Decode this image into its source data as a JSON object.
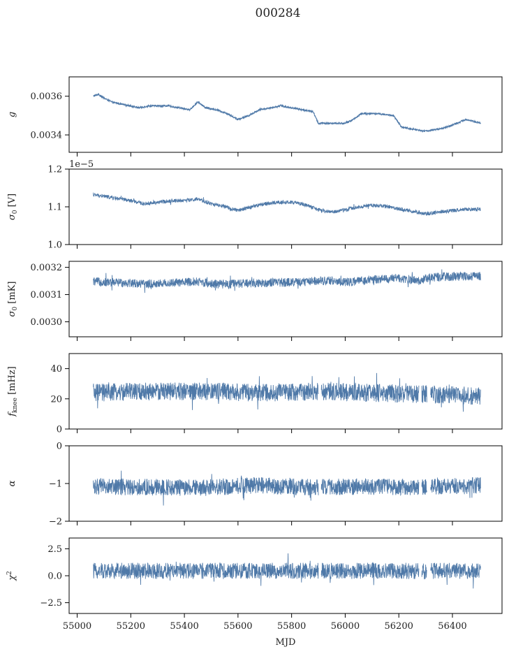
{
  "figure": {
    "title": "000284",
    "xlabel": "MJD"
  },
  "style": {
    "line_color": "#4f79a8",
    "frame_color": "#000000"
  },
  "chart_data": [
    {
      "type": "line",
      "ylabel": "g",
      "ylim": [
        0.00331,
        0.0037
      ],
      "yticks": [
        0.0034,
        0.0036
      ],
      "ytick_labels": [
        "0.0034",
        "0.0036"
      ],
      "xlim": [
        54970,
        56585
      ],
      "xticks": [
        55000,
        55200,
        55400,
        55600,
        55800,
        56000,
        56200,
        56400
      ],
      "show_xtick_labels": false,
      "offset_text": "",
      "noise": 4e-06,
      "series": [
        {
          "x": [
            55060,
            55080,
            55100,
            55130,
            55160,
            55200,
            55230,
            55270,
            55300,
            55340,
            55380,
            55420,
            55450,
            55480,
            55520,
            55560,
            55600,
            55640,
            55680,
            55720,
            55760,
            55800,
            55840,
            55880,
            55900,
            55950,
            56000,
            56030,
            56060,
            56120,
            56180,
            56210,
            56250,
            56300,
            56350,
            56400,
            56450,
            56505
          ],
          "y": [
            0.0036,
            0.00361,
            0.00359,
            0.00357,
            0.00356,
            0.00355,
            0.00354,
            0.00355,
            0.00355,
            0.00355,
            0.00354,
            0.00353,
            0.00357,
            0.00354,
            0.00353,
            0.00351,
            0.00348,
            0.0035,
            0.00353,
            0.00354,
            0.00355,
            0.00354,
            0.00353,
            0.00352,
            0.00346,
            0.00346,
            0.00346,
            0.00348,
            0.00351,
            0.00351,
            0.0035,
            0.00344,
            0.00343,
            0.00342,
            0.00343,
            0.00345,
            0.00348,
            0.00346
          ]
        }
      ]
    },
    {
      "type": "line",
      "ylabel": "σ0 [V]",
      "ylim": [
        1e-05,
        1.2e-05
      ],
      "yticks": [
        1e-05,
        1.1e-05,
        1.2e-05
      ],
      "ytick_labels": [
        "1.0",
        "1.1",
        "1.2"
      ],
      "xlim": [
        54970,
        56585
      ],
      "xticks": [
        55000,
        55200,
        55400,
        55600,
        55800,
        56000,
        56200,
        56400
      ],
      "show_xtick_labels": false,
      "offset_text": "1e−5",
      "noise": 5e-08,
      "series": [
        {
          "x": [
            55060,
            55100,
            55150,
            55200,
            55250,
            55300,
            55350,
            55400,
            55450,
            55500,
            55550,
            55600,
            55650,
            55700,
            55750,
            55800,
            55850,
            55900,
            55950,
            56000,
            56050,
            56100,
            56150,
            56200,
            56250,
            56300,
            56350,
            56400,
            56450,
            56505
          ],
          "y": [
            1.132e-05,
            1.128e-05,
            1.122e-05,
            1.116e-05,
            1.108e-05,
            1.112e-05,
            1.116e-05,
            1.117e-05,
            1.12e-05,
            1.108e-05,
            1.1e-05,
            1.09e-05,
            1.1e-05,
            1.108e-05,
            1.112e-05,
            1.112e-05,
            1.106e-05,
            1.092e-05,
            1.086e-05,
            1.092e-05,
            1.1e-05,
            1.104e-05,
            1.102e-05,
            1.095e-05,
            1.088e-05,
            1.082e-05,
            1.086e-05,
            1.09e-05,
            1.094e-05,
            1.094e-05
          ]
        }
      ]
    },
    {
      "type": "line",
      "ylabel": "σ0 [mK]",
      "ylim": [
        0.002945,
        0.003222
      ],
      "yticks": [
        0.003,
        0.0031,
        0.0032
      ],
      "ytick_labels": [
        "0.0030",
        "0.0031",
        "0.0032"
      ],
      "xlim": [
        54970,
        56585
      ],
      "xticks": [
        55000,
        55200,
        55400,
        55600,
        55800,
        56000,
        56200,
        56400
      ],
      "show_xtick_labels": false,
      "offset_text": "",
      "noise": 1.6e-05,
      "series": [
        {
          "x": [
            55060,
            55120,
            55200,
            55260,
            55300,
            55400,
            55450,
            55500,
            55560,
            55600,
            55700,
            55800,
            55850,
            55900,
            55950,
            56000,
            56050,
            56100,
            56150,
            56200,
            56250,
            56280,
            56300,
            56350,
            56400,
            56505
          ],
          "y": [
            0.003148,
            0.003145,
            0.003143,
            0.003138,
            0.00314,
            0.003145,
            0.003148,
            0.00314,
            0.003137,
            0.00314,
            0.003143,
            0.003145,
            0.003147,
            0.003152,
            0.00315,
            0.003145,
            0.00315,
            0.003155,
            0.003158,
            0.00316,
            0.003155,
            0.00315,
            0.00316,
            0.003165,
            0.003166,
            0.003168
          ]
        }
      ]
    },
    {
      "type": "line",
      "ylabel": "fknee [mHz]",
      "ylim": [
        0,
        50
      ],
      "yticks": [
        0,
        20,
        40
      ],
      "ytick_labels": [
        "0",
        "20",
        "40"
      ],
      "xlim": [
        54970,
        56585
      ],
      "xticks": [
        55000,
        55200,
        55400,
        55600,
        55800,
        56000,
        56200,
        56400
      ],
      "show_xtick_labels": false,
      "offset_text": "",
      "noise": 6,
      "series": [
        {
          "x": [
            55060,
            55300,
            55500,
            55700,
            55900,
            56100,
            56300,
            56505
          ],
          "y": [
            24,
            25,
            25,
            24,
            25,
            24,
            23,
            22
          ]
        }
      ]
    },
    {
      "type": "line",
      "ylabel": "α",
      "ylim": [
        -2,
        0
      ],
      "yticks": [
        -2,
        -1,
        0
      ],
      "ytick_labels": [
        "−2",
        "−1",
        "0"
      ],
      "xlim": [
        54970,
        56585
      ],
      "xticks": [
        55000,
        55200,
        55400,
        55600,
        55800,
        56000,
        56200,
        56400
      ],
      "show_xtick_labels": false,
      "offset_text": "",
      "noise": 0.22,
      "series": [
        {
          "x": [
            55060,
            55300,
            55450,
            55650,
            55900,
            56100,
            56300,
            56505
          ],
          "y": [
            -1.08,
            -1.1,
            -1.12,
            -1.05,
            -1.1,
            -1.08,
            -1.1,
            -1.05
          ]
        }
      ]
    },
    {
      "type": "line",
      "ylabel": "χ2",
      "ylim": [
        -3.5,
        3.5
      ],
      "yticks": [
        -2.5,
        0,
        2.5
      ],
      "ytick_labels": [
        "−2.5",
        "0.0",
        "2.5"
      ],
      "xlim": [
        54970,
        56585
      ],
      "xticks": [
        55000,
        55200,
        55400,
        55600,
        55800,
        56000,
        56200,
        56400
      ],
      "show_xtick_labels": true,
      "xtick_labels": [
        "55000",
        "55200",
        "55400",
        "55600",
        "55800",
        "56000",
        "56200",
        "56400"
      ],
      "offset_text": "",
      "noise": 0.75,
      "series": [
        {
          "x": [
            55060,
            56505
          ],
          "y": [
            0.45,
            0.45
          ]
        }
      ]
    }
  ]
}
